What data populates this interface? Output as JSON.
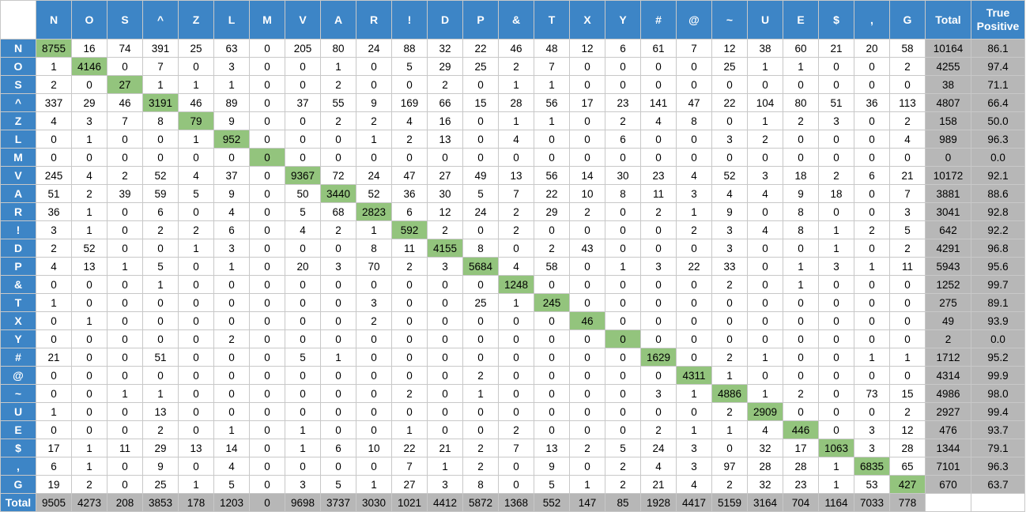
{
  "chart_data": {
    "type": "table",
    "labels": [
      "N",
      "O",
      "S",
      "^",
      "Z",
      "L",
      "M",
      "V",
      "A",
      "R",
      "!",
      "D",
      "P",
      "&",
      "T",
      "X",
      "Y",
      "#",
      "@",
      "~",
      "U",
      "E",
      "$",
      ",",
      "G"
    ],
    "total_header": "Total",
    "true_positive_header": "True Positive",
    "matrix": [
      [
        8755,
        16,
        74,
        391,
        25,
        63,
        0,
        205,
        80,
        24,
        88,
        32,
        22,
        46,
        48,
        12,
        6,
        61,
        7,
        12,
        38,
        60,
        21,
        20,
        58
      ],
      [
        1,
        4146,
        0,
        7,
        0,
        3,
        0,
        0,
        1,
        0,
        5,
        29,
        25,
        2,
        7,
        0,
        0,
        0,
        0,
        25,
        1,
        1,
        0,
        0,
        2
      ],
      [
        2,
        0,
        27,
        1,
        1,
        1,
        0,
        0,
        2,
        0,
        0,
        2,
        0,
        1,
        1,
        0,
        0,
        0,
        0,
        0,
        0,
        0,
        0,
        0,
        0
      ],
      [
        337,
        29,
        46,
        3191,
        46,
        89,
        0,
        37,
        55,
        9,
        169,
        66,
        15,
        28,
        56,
        17,
        23,
        141,
        47,
        22,
        104,
        80,
        51,
        36,
        113
      ],
      [
        4,
        3,
        7,
        8,
        79,
        9,
        0,
        0,
        2,
        2,
        4,
        16,
        0,
        1,
        1,
        0,
        2,
        4,
        8,
        0,
        1,
        2,
        3,
        0,
        2
      ],
      [
        0,
        1,
        0,
        0,
        1,
        952,
        0,
        0,
        0,
        1,
        2,
        13,
        0,
        4,
        0,
        0,
        6,
        0,
        0,
        3,
        2,
        0,
        0,
        0,
        4
      ],
      [
        0,
        0,
        0,
        0,
        0,
        0,
        0,
        0,
        0,
        0,
        0,
        0,
        0,
        0,
        0,
        0,
        0,
        0,
        0,
        0,
        0,
        0,
        0,
        0,
        0
      ],
      [
        245,
        4,
        2,
        52,
        4,
        37,
        0,
        9367,
        72,
        24,
        47,
        27,
        49,
        13,
        56,
        14,
        30,
        23,
        4,
        52,
        3,
        18,
        2,
        6,
        21
      ],
      [
        51,
        2,
        39,
        59,
        5,
        9,
        0,
        50,
        3440,
        52,
        36,
        30,
        5,
        7,
        22,
        10,
        8,
        11,
        3,
        4,
        4,
        9,
        18,
        0,
        7
      ],
      [
        36,
        1,
        0,
        6,
        0,
        4,
        0,
        5,
        68,
        2823,
        6,
        12,
        24,
        2,
        29,
        2,
        0,
        2,
        1,
        9,
        0,
        8,
        0,
        0,
        3
      ],
      [
        3,
        1,
        0,
        2,
        2,
        6,
        0,
        4,
        2,
        1,
        592,
        2,
        0,
        2,
        0,
        0,
        0,
        0,
        2,
        3,
        4,
        8,
        1,
        2,
        5
      ],
      [
        2,
        52,
        0,
        0,
        1,
        3,
        0,
        0,
        0,
        8,
        11,
        4155,
        8,
        0,
        2,
        43,
        0,
        0,
        0,
        3,
        0,
        0,
        1,
        0,
        2
      ],
      [
        4,
        13,
        1,
        5,
        0,
        1,
        0,
        20,
        3,
        70,
        2,
        3,
        5684,
        4,
        58,
        0,
        1,
        3,
        22,
        33,
        0,
        1,
        3,
        1,
        11
      ],
      [
        0,
        0,
        0,
        1,
        0,
        0,
        0,
        0,
        0,
        0,
        0,
        0,
        0,
        1248,
        0,
        0,
        0,
        0,
        0,
        2,
        0,
        1,
        0,
        0,
        0
      ],
      [
        1,
        0,
        0,
        0,
        0,
        0,
        0,
        0,
        0,
        3,
        0,
        0,
        25,
        1,
        245,
        0,
        0,
        0,
        0,
        0,
        0,
        0,
        0,
        0,
        0
      ],
      [
        0,
        1,
        0,
        0,
        0,
        0,
        0,
        0,
        0,
        2,
        0,
        0,
        0,
        0,
        0,
        46,
        0,
        0,
        0,
        0,
        0,
        0,
        0,
        0,
        0
      ],
      [
        0,
        0,
        0,
        0,
        0,
        2,
        0,
        0,
        0,
        0,
        0,
        0,
        0,
        0,
        0,
        0,
        0,
        0,
        0,
        0,
        0,
        0,
        0,
        0,
        0
      ],
      [
        21,
        0,
        0,
        51,
        0,
        0,
        0,
        5,
        1,
        0,
        0,
        0,
        0,
        0,
        0,
        0,
        0,
        1629,
        0,
        2,
        1,
        0,
        0,
        1,
        1
      ],
      [
        0,
        0,
        0,
        0,
        0,
        0,
        0,
        0,
        0,
        0,
        0,
        0,
        2,
        0,
        0,
        0,
        0,
        0,
        4311,
        1,
        0,
        0,
        0,
        0,
        0
      ],
      [
        0,
        0,
        1,
        1,
        0,
        0,
        0,
        0,
        0,
        0,
        2,
        0,
        1,
        0,
        0,
        0,
        0,
        3,
        1,
        4886,
        1,
        2,
        0,
        73,
        15
      ],
      [
        1,
        0,
        0,
        13,
        0,
        0,
        0,
        0,
        0,
        0,
        0,
        0,
        0,
        0,
        0,
        0,
        0,
        0,
        0,
        2,
        2909,
        0,
        0,
        0,
        2
      ],
      [
        0,
        0,
        0,
        2,
        0,
        1,
        0,
        1,
        0,
        0,
        1,
        0,
        0,
        2,
        0,
        0,
        0,
        2,
        1,
        1,
        4,
        446,
        0,
        3,
        12
      ],
      [
        17,
        1,
        11,
        29,
        13,
        14,
        0,
        1,
        6,
        10,
        22,
        21,
        2,
        7,
        13,
        2,
        5,
        24,
        3,
        0,
        32,
        17,
        1063,
        3,
        28
      ],
      [
        6,
        1,
        0,
        9,
        0,
        4,
        0,
        0,
        0,
        0,
        7,
        1,
        2,
        0,
        9,
        0,
        2,
        4,
        3,
        97,
        28,
        28,
        1,
        6835,
        65
      ],
      [
        19,
        2,
        0,
        25,
        1,
        5,
        0,
        3,
        5,
        1,
        27,
        3,
        8,
        0,
        5,
        1,
        2,
        21,
        4,
        2,
        32,
        23,
        1,
        53,
        427
      ]
    ],
    "row_totals": [
      10164,
      4255,
      38,
      4807,
      158,
      989,
      0,
      10172,
      3881,
      3041,
      642,
      4291,
      5943,
      1252,
      275,
      49,
      2,
      1712,
      4314,
      4986,
      2927,
      476,
      1344,
      7101,
      670
    ],
    "true_positive": [
      "86.1",
      "97.4",
      "71.1",
      "66.4",
      "50.0",
      "96.3",
      "0.0",
      "92.1",
      "88.6",
      "92.8",
      "92.2",
      "96.8",
      "95.6",
      "99.7",
      "89.1",
      "93.9",
      "0.0",
      "95.2",
      "99.9",
      "98.0",
      "99.4",
      "93.7",
      "79.1",
      "96.3",
      "63.7"
    ],
    "total_row_label": "Total",
    "column_totals": [
      9505,
      4273,
      208,
      3853,
      178,
      1203,
      0,
      9698,
      3737,
      3030,
      1021,
      4412,
      5872,
      1368,
      552,
      147,
      85,
      1928,
      4417,
      5159,
      3164,
      704,
      1164,
      7033,
      778
    ],
    "colors": {
      "header": "#3d85c6",
      "diagonal": "#93c47d",
      "totals": "#b7b7b7"
    }
  }
}
